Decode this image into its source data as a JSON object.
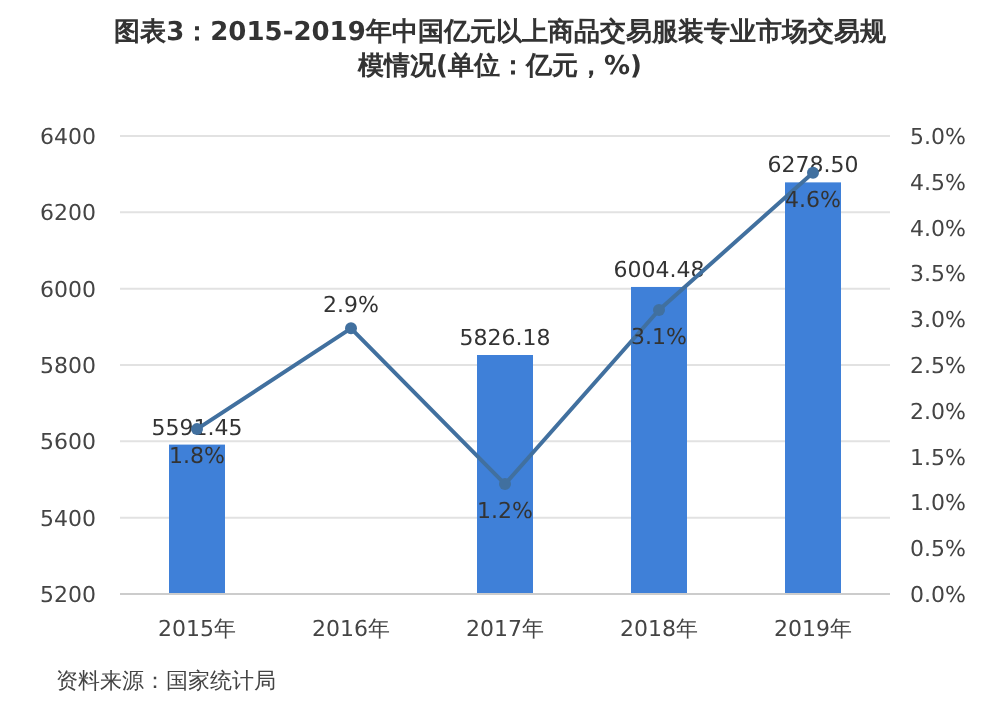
{
  "chart_data": {
    "type": "bar",
    "title": "图表3：2015-2019年中国亿元以上商品交易服装专业市场交易规模情况(单位：亿元，%)",
    "categories": [
      "2015年",
      "2016年",
      "2017年",
      "2018年",
      "2019年"
    ],
    "series": [
      {
        "color": "#3f80d8",
        "values": [
          5591.45,
          null,
          5826.18,
          6004.48,
          6278.5
        ],
        "value_labels": [
          "5591.45",
          null,
          "5826.18",
          "6004.48",
          "6278.50"
        ]
      },
      {
        "type": "line",
        "axis": "y2",
        "color": "#41709f",
        "marker": "circle",
        "values": [
          1.8,
          2.9,
          1.2,
          3.1,
          4.6
        ],
        "value_labels": [
          "1.8%",
          "2.9%",
          "1.2%",
          "3.1%",
          "4.6%"
        ]
      }
    ],
    "ylim": [
      5200,
      6400
    ],
    "yticks": [
      5200,
      5400,
      5600,
      5800,
      6000,
      6200,
      6400
    ],
    "y2lim": [
      0,
      5
    ],
    "y2ticks": [
      {
        "value": 0,
        "label": "0.0%"
      },
      {
        "value": 0.5,
        "label": "0.5%"
      },
      {
        "value": 1,
        "label": "1.0%"
      },
      {
        "value": 1.5,
        "label": "1.5%"
      },
      {
        "value": 2,
        "label": "2.0%"
      },
      {
        "value": 2.5,
        "label": "2.5%"
      },
      {
        "value": 3,
        "label": "3.0%"
      },
      {
        "value": 3.5,
        "label": "3.5%"
      },
      {
        "value": 4,
        "label": "4.0%"
      },
      {
        "value": 4.5,
        "label": "4.5%"
      },
      {
        "value": 5,
        "label": "5.0%"
      }
    ],
    "grid": "y",
    "annotations": [
      "资料来源：国家统计局"
    ]
  }
}
